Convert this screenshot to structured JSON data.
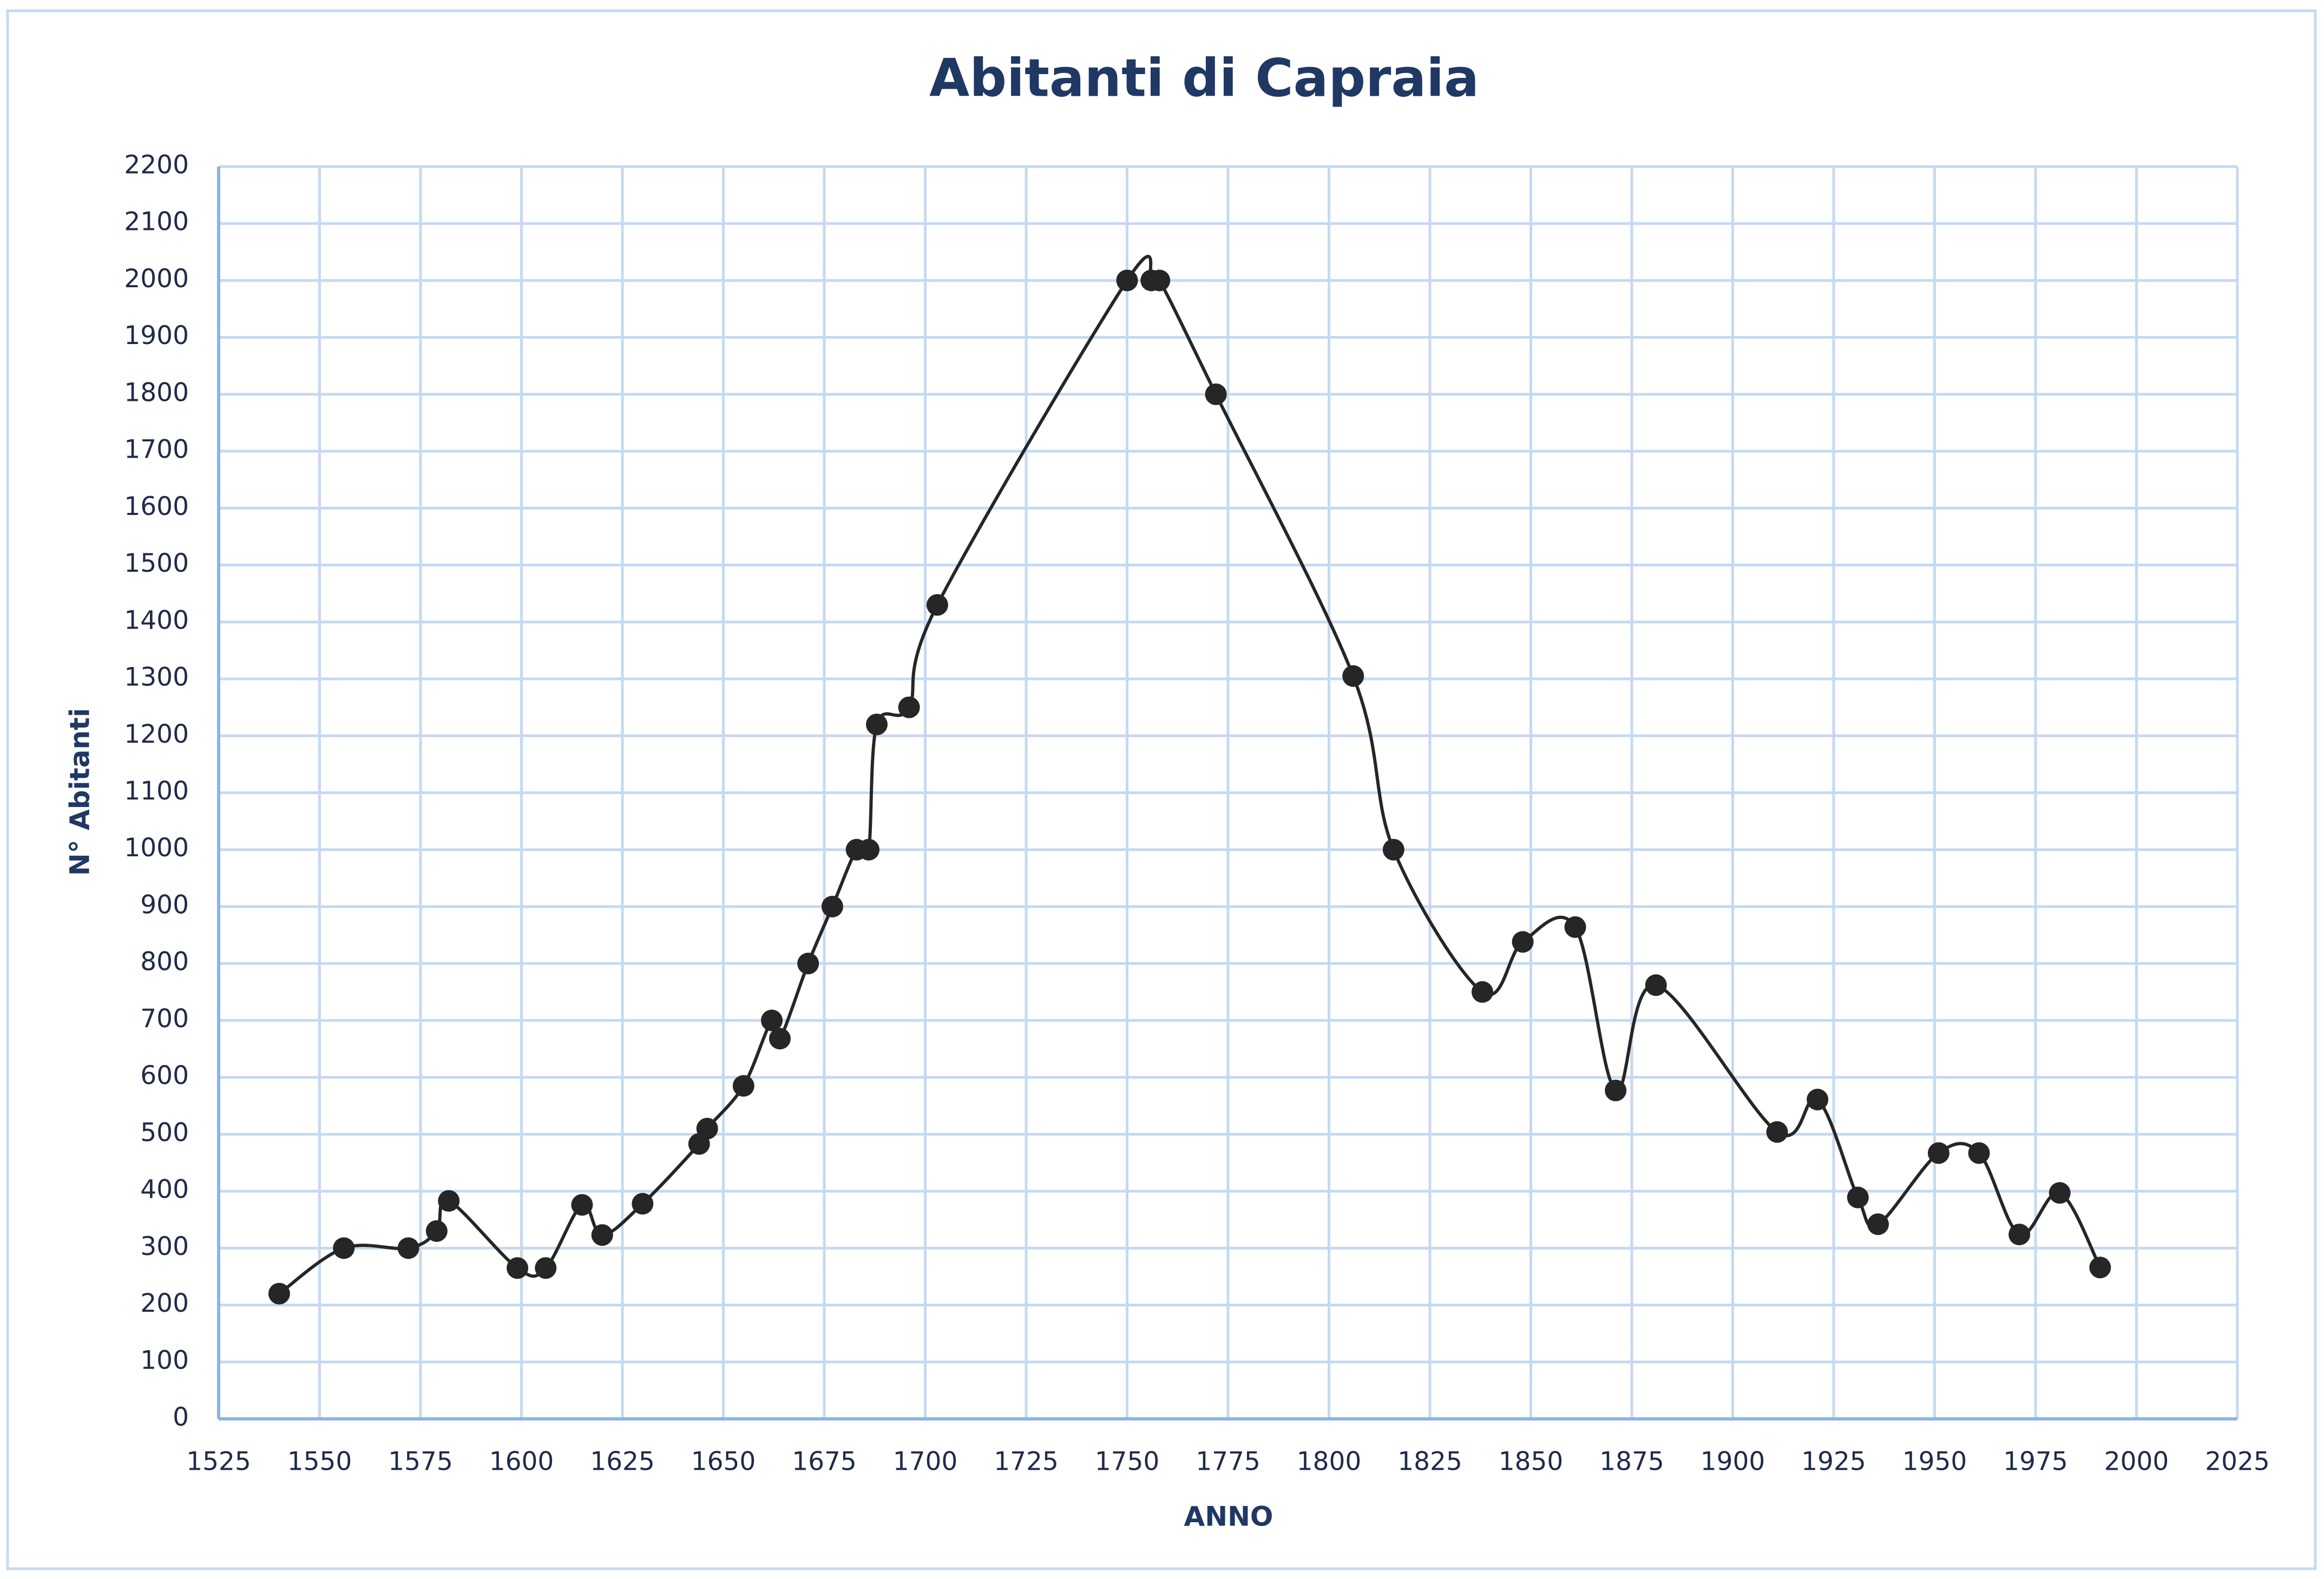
{
  "chart_data": {
    "type": "line",
    "title": "Abitanti di Capraia",
    "x_label": "ANNO",
    "y_label": "N° Abitanti",
    "x": [
      1540,
      1556,
      1572,
      1579,
      1582,
      1599,
      1606,
      1615,
      1620,
      1630,
      1644,
      1646,
      1655,
      1662,
      1664,
      1671,
      1677,
      1683,
      1686,
      1688,
      1696,
      1703,
      1750,
      1756,
      1758,
      1772,
      1806,
      1816,
      1838,
      1848,
      1861,
      1871,
      1881,
      1911,
      1921,
      1931,
      1936,
      1951,
      1961,
      1971,
      1981,
      1991
    ],
    "series": [
      {
        "name": "Abitanti",
        "color": "#262626",
        "values": [
          220,
          300,
          300,
          330,
          383,
          265,
          265,
          376,
          323,
          378,
          483,
          510,
          585,
          700,
          668,
          800,
          900,
          1000,
          1000,
          1220,
          1250,
          1430,
          2000,
          2000,
          2000,
          1800,
          1305,
          1000,
          750,
          838,
          864,
          577,
          762,
          504,
          561,
          389,
          342,
          467,
          467,
          324,
          397,
          266
        ]
      }
    ],
    "xlim": [
      1525,
      2025
    ],
    "xticks": [
      1525,
      1550,
      1575,
      1600,
      1625,
      1650,
      1675,
      1700,
      1725,
      1750,
      1775,
      1800,
      1825,
      1850,
      1875,
      1900,
      1925,
      1950,
      1975,
      2000,
      2025
    ],
    "ylim": [
      0,
      2200
    ],
    "yticks": [
      0,
      100,
      200,
      300,
      400,
      500,
      600,
      700,
      800,
      900,
      1000,
      1100,
      1200,
      1300,
      1400,
      1500,
      1600,
      1700,
      1800,
      1900,
      2000,
      2100,
      2200
    ],
    "grid": true
  }
}
